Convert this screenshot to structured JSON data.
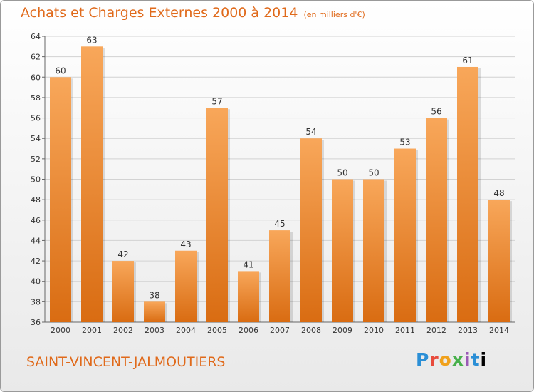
{
  "header": {
    "title": "Achats et Charges Externes 2000 à 2014",
    "unit": "(en milliers d'€)"
  },
  "footer": {
    "commune": "SAINT-VINCENT-JALMOUTIERS",
    "logo": "Proxiti",
    "logo_letters": [
      "P",
      "r",
      "o",
      "x",
      "i",
      "t",
      "i"
    ]
  },
  "colors": {
    "bar_top": "#f8a75a",
    "bar_bottom": "#d96c12",
    "title": "#e06a1b",
    "grid": "#d2d2d2"
  },
  "chart_data": {
    "type": "bar",
    "title": "Achats et Charges Externes 2000 à 2014",
    "xlabel": "",
    "ylabel": "",
    "categories": [
      "2000",
      "2001",
      "2002",
      "2003",
      "2004",
      "2005",
      "2006",
      "2007",
      "2008",
      "2009",
      "2010",
      "2011",
      "2012",
      "2013",
      "2014"
    ],
    "values": [
      60,
      63,
      42,
      38,
      43,
      57,
      41,
      45,
      54,
      50,
      50,
      53,
      56,
      61,
      48
    ],
    "ylim": [
      36,
      64
    ],
    "yticks": [
      36,
      38,
      40,
      42,
      44,
      46,
      48,
      50,
      52,
      54,
      56,
      58,
      60,
      62,
      64
    ],
    "grid": true,
    "data_labels": true
  }
}
